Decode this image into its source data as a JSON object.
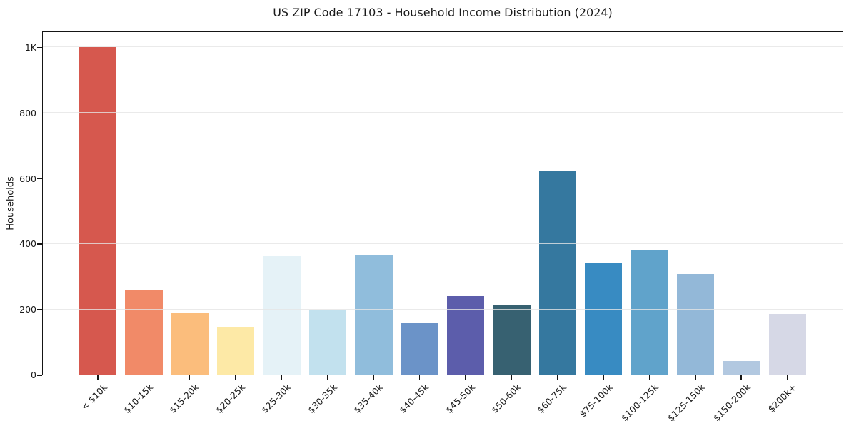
{
  "chart_data": {
    "type": "bar",
    "title": "US ZIP Code 17103 - Household Income Distribution (2024)",
    "xlabel": "",
    "ylabel": "Households",
    "ylim": [
      0,
      1050
    ],
    "grid": "horizontal",
    "yticks": [
      {
        "value": 0,
        "label": "0"
      },
      {
        "value": 200,
        "label": "200"
      },
      {
        "value": 400,
        "label": "400"
      },
      {
        "value": 600,
        "label": "600"
      },
      {
        "value": 800,
        "label": "800"
      },
      {
        "value": 1000,
        "label": "1K"
      }
    ],
    "categories": [
      "< $10k",
      "$10-15k",
      "$15-20k",
      "$20-25k",
      "$25-30k",
      "$30-35k",
      "$35-40k",
      "$40-45k",
      "$45-50k",
      "$50-60k",
      "$60-75k",
      "$75-100k",
      "$100-125k",
      "$125-150k",
      "$150-200k",
      "$200k+"
    ],
    "values": [
      1000,
      258,
      189,
      145,
      361,
      198,
      367,
      160,
      239,
      214,
      620,
      341,
      380,
      307,
      42,
      186
    ],
    "bar_colors": [
      "#d6584e",
      "#f18a68",
      "#fbbd7c",
      "#fde9a6",
      "#e5f2f7",
      "#c2e1ee",
      "#90bddc",
      "#6b93c8",
      "#5c5dab",
      "#376171",
      "#35789f",
      "#388bc2",
      "#60a3cb",
      "#93b8d8",
      "#b2c8e0",
      "#d6d8e6"
    ]
  },
  "colors": {
    "background": "#ffffff",
    "text": "#1a1a1a",
    "spine": "#151515",
    "gridline": "#e5e5e5"
  }
}
